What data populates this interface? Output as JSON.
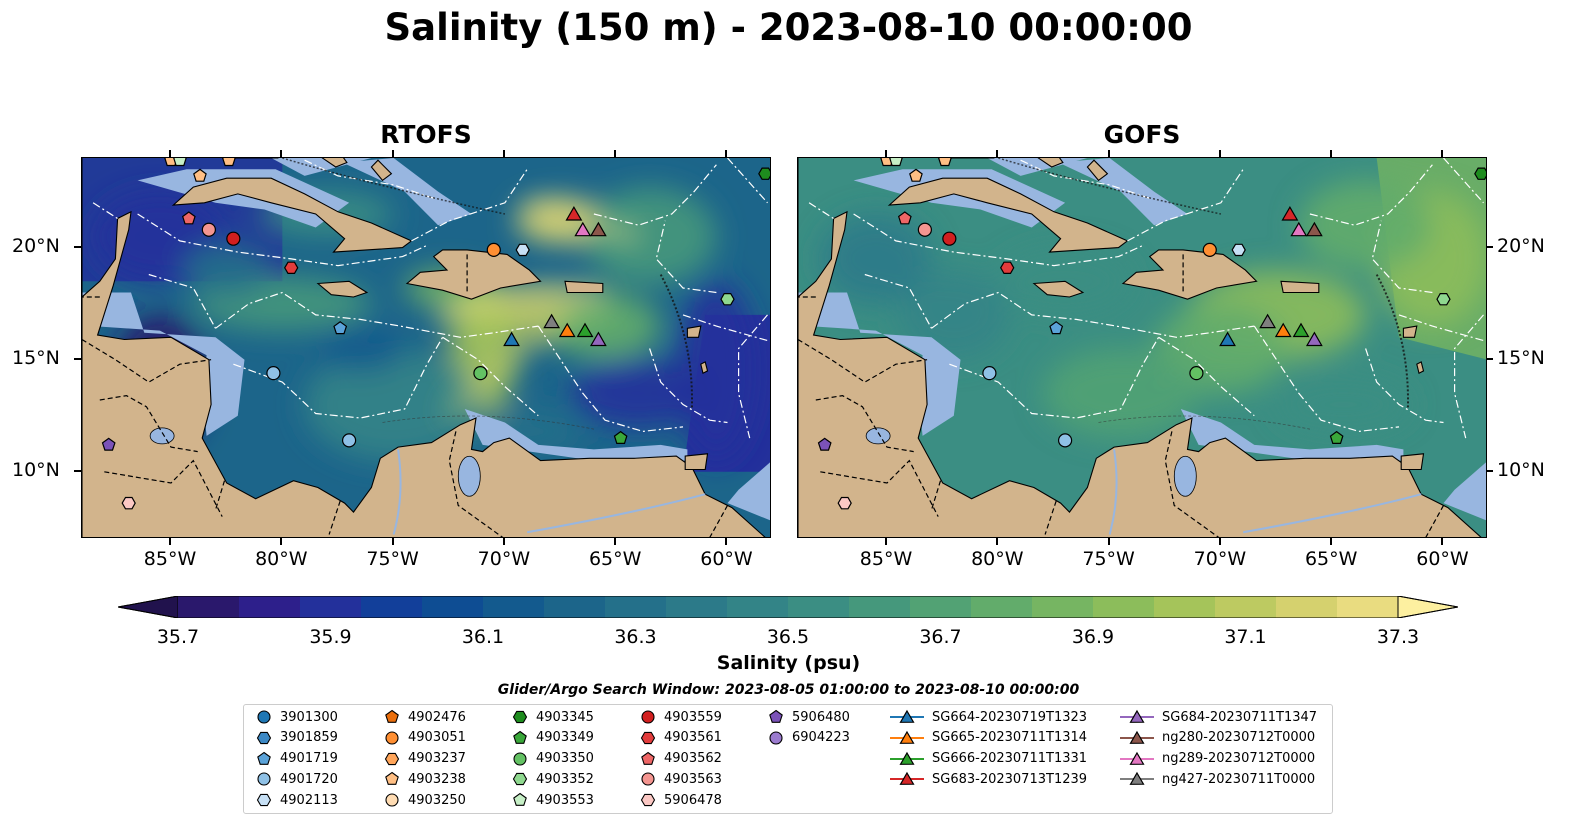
{
  "title": "Salinity (150 m) - 2023-08-10 00:00:00",
  "panels": [
    {
      "title": "RTOFS"
    },
    {
      "title": "GOFS"
    }
  ],
  "axes": {
    "x_ticks": [
      "85°W",
      "80°W",
      "75°W",
      "70°W",
      "65°W",
      "60°W"
    ],
    "y_ticks": [
      "20°N",
      "15°N",
      "10°N"
    ],
    "lon_range": [
      -89,
      -58
    ],
    "lat_range": [
      7,
      24
    ]
  },
  "colorbar": {
    "label": "Salinity (psu)",
    "ticks": [
      "35.7",
      "35.9",
      "36.1",
      "36.3",
      "36.5",
      "36.7",
      "36.9",
      "37.1",
      "37.3"
    ],
    "range": [
      35.7,
      37.3
    ],
    "extend": "both",
    "colormap": "haline",
    "colors": [
      "#2a186c",
      "#2d1f8b",
      "#23309b",
      "#123f9a",
      "#0e4d93",
      "#135a8e",
      "#1c658a",
      "#24708a",
      "#2c7a89",
      "#338487",
      "#3b8e83",
      "#45987c",
      "#52a274",
      "#62ac6b",
      "#76b562",
      "#8cbd5b",
      "#a5c45a",
      "#bdca61",
      "#d5d16e",
      "#e9dc80"
    ]
  },
  "legend": {
    "title": "Glider/Argo Search Window: 2023-08-05 01:00:00 to 2023-08-10 00:00:00",
    "columns": [
      [
        {
          "label": "3901300",
          "marker": "circle",
          "color": "#1f77b4"
        },
        {
          "label": "3901859",
          "marker": "hexagon",
          "color": "#3c88c4"
        },
        {
          "label": "4901719",
          "marker": "pentagon",
          "color": "#5ba3d9"
        },
        {
          "label": "4901720",
          "marker": "circle",
          "color": "#8fc1e6"
        },
        {
          "label": "4902113",
          "marker": "hexagon",
          "color": "#c7e0f5"
        }
      ],
      [
        {
          "label": "4902476",
          "marker": "pentagon",
          "color": "#ea6e0c"
        },
        {
          "label": "4903051",
          "marker": "circle",
          "color": "#ff8f33"
        },
        {
          "label": "4903237",
          "marker": "hexagon",
          "color": "#ffa55a"
        },
        {
          "label": "4903238",
          "marker": "pentagon",
          "color": "#ffbf84"
        },
        {
          "label": "4903250",
          "marker": "circle",
          "color": "#ffdcb3"
        }
      ],
      [
        {
          "label": "4903345",
          "marker": "hexagon",
          "color": "#1e8c1e"
        },
        {
          "label": "4903349",
          "marker": "pentagon",
          "color": "#3aa73a"
        },
        {
          "label": "4903350",
          "marker": "circle",
          "color": "#63c163"
        },
        {
          "label": "4903352",
          "marker": "hexagon",
          "color": "#8fd88f"
        },
        {
          "label": "4903553",
          "marker": "pentagon",
          "color": "#c6efc6"
        }
      ],
      [
        {
          "label": "4903559",
          "marker": "circle",
          "color": "#d21f1f"
        },
        {
          "label": "4903561",
          "marker": "hexagon",
          "color": "#e23c3c"
        },
        {
          "label": "4903562",
          "marker": "pentagon",
          "color": "#ee6666"
        },
        {
          "label": "4903563",
          "marker": "circle",
          "color": "#f49590"
        },
        {
          "label": "5906478",
          "marker": "hexagon",
          "color": "#fbc8c4"
        }
      ],
      [
        {
          "label": "5906480",
          "marker": "pentagon",
          "color": "#7b52b8"
        },
        {
          "label": "6904223",
          "marker": "circle",
          "color": "#9b7bcf"
        }
      ],
      [
        {
          "label": "SG664-20230719T1323",
          "marker": "triangle-line",
          "color": "#1f77b4"
        },
        {
          "label": "SG665-20230711T1314",
          "marker": "triangle-line",
          "color": "#ff7f0e"
        },
        {
          "label": "SG666-20230711T1331",
          "marker": "triangle-line",
          "color": "#2ca02c"
        },
        {
          "label": "SG683-20230713T1239",
          "marker": "triangle-line",
          "color": "#d62728"
        }
      ],
      [
        {
          "label": "SG684-20230711T1347",
          "marker": "triangle-line",
          "color": "#9467bd"
        },
        {
          "label": "ng280-20230712T0000",
          "marker": "triangle-line",
          "color": "#8c564b"
        },
        {
          "label": "ng289-20230712T0000",
          "marker": "triangle-line",
          "color": "#e377c2"
        },
        {
          "label": "ng427-20230711T0000",
          "marker": "triangle-line",
          "color": "#7f7f7f"
        }
      ]
    ]
  },
  "platforms": [
    {
      "label": "4903563",
      "lon": -83.3,
      "lat": 20.8
    },
    {
      "label": "4903559",
      "lon": -82.2,
      "lat": 20.4
    },
    {
      "label": "4903562",
      "lon": -84.2,
      "lat": 21.3
    },
    {
      "label": "4903561",
      "lon": -79.6,
      "lat": 19.1
    },
    {
      "label": "4903051",
      "lon": -70.5,
      "lat": 19.9
    },
    {
      "label": "4902113",
      "lon": -69.2,
      "lat": 19.9
    },
    {
      "label": "4901719",
      "lon": -77.4,
      "lat": 16.4
    },
    {
      "label": "4901720",
      "lon": -80.4,
      "lat": 14.4
    },
    {
      "label": "4903350",
      "lon": -71.1,
      "lat": 14.4
    },
    {
      "label": "4901720",
      "lon": -77.0,
      "lat": 11.4
    },
    {
      "label": "4903349",
      "lon": -64.8,
      "lat": 11.5
    },
    {
      "label": "4903352",
      "lon": -60.0,
      "lat": 17.7
    },
    {
      "label": "4903345",
      "lon": -58.3,
      "lat": 23.3
    },
    {
      "label": "5906480",
      "lon": -87.8,
      "lat": 11.2
    },
    {
      "label": "5906478",
      "lon": -86.9,
      "lat": 8.6
    },
    {
      "label": "4903238",
      "lon": -83.7,
      "lat": 23.2
    },
    {
      "label": "4903238",
      "lon": -85.0,
      "lat": 23.9
    },
    {
      "label": "4903553",
      "lon": -84.6,
      "lat": 23.9
    },
    {
      "label": "4903238",
      "lon": -82.4,
      "lat": 23.9
    }
  ],
  "gliders": [
    {
      "label": "SG683-20230713T1239",
      "lon": -66.9,
      "lat": 21.5
    },
    {
      "label": "ng289-20230712T0000",
      "lon": -66.5,
      "lat": 20.8
    },
    {
      "label": "ng280-20230712T0000",
      "lon": -65.8,
      "lat": 20.8
    },
    {
      "label": "ng427-20230711T0000",
      "lon": -67.9,
      "lat": 16.7
    },
    {
      "label": "SG665-20230711T1314",
      "lon": -67.2,
      "lat": 16.3
    },
    {
      "label": "SG666-20230711T1331",
      "lon": -66.4,
      "lat": 16.3
    },
    {
      "label": "SG684-20230711T1347",
      "lon": -65.8,
      "lat": 15.9
    },
    {
      "label": "SG664-20230719T1323",
      "lon": -69.7,
      "lat": 15.9
    }
  ]
}
